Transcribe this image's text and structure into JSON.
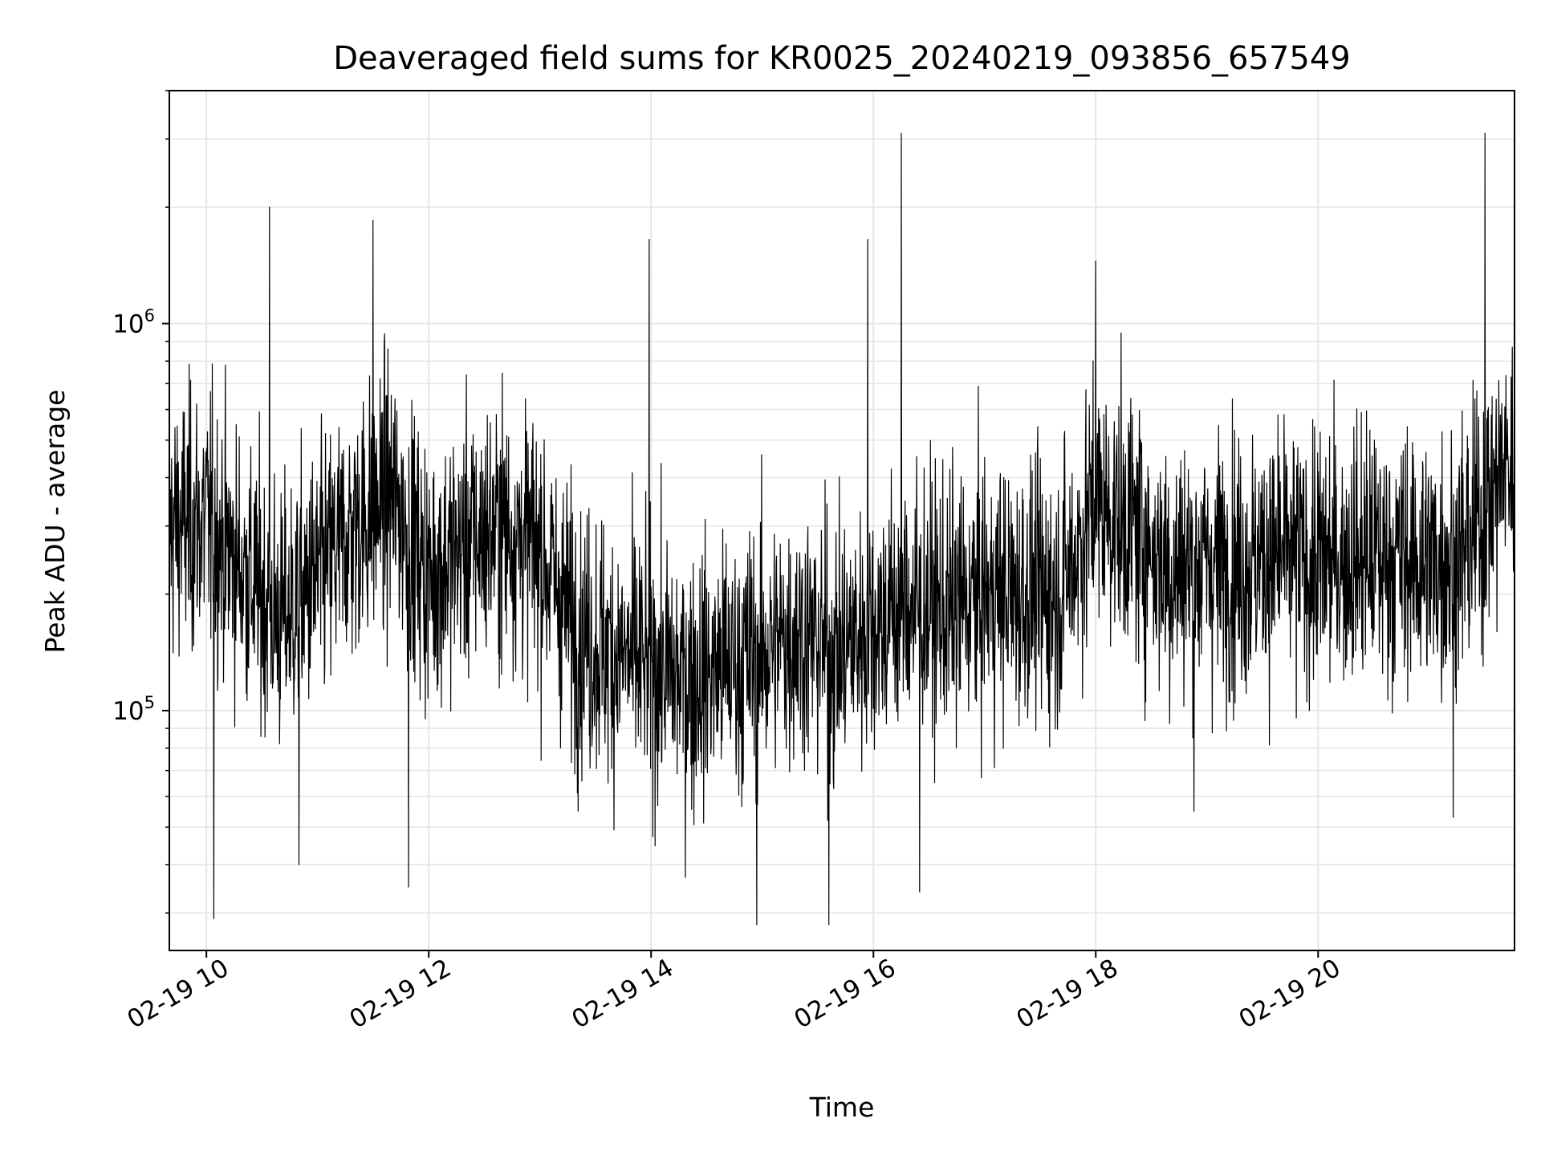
{
  "chart_data": {
    "type": "line",
    "title": "Deaveraged field sums for KR0025_20240219_093856_657549",
    "xlabel": "Time",
    "ylabel": "Peak ADU - average",
    "xscale": "date",
    "yscale": "log",
    "xlim": [
      "2024-02-19 09:40",
      "2024-02-19 21:46"
    ],
    "ylim": [
      24000,
      4000000
    ],
    "grid": true,
    "color": "#000000",
    "x_tick_labels": [
      "02-19 10",
      "02-19 12",
      "02-19 14",
      "02-19 16",
      "02-19 18",
      "02-19 20"
    ],
    "y_tick_labels": [
      {
        "base": "10",
        "exp": "5"
      },
      {
        "base": "10",
        "exp": "6"
      }
    ],
    "series": [
      {
        "values": [
          {
            "x": "2024-02-19 09:40",
            "y": 300000
          },
          {
            "x": "2024-02-19 10:00",
            "y": 310000
          },
          {
            "x": "2024-02-19 10:20",
            "y": 230000
          },
          {
            "x": "2024-02-19 10:40",
            "y": 170000
          },
          {
            "x": "2024-02-19 11:00",
            "y": 220000
          },
          {
            "x": "2024-02-19 11:20",
            "y": 300000
          },
          {
            "x": "2024-02-19 11:40",
            "y": 360000
          },
          {
            "x": "2024-02-19 12:00",
            "y": 220000
          },
          {
            "x": "2024-02-19 12:20",
            "y": 270000
          },
          {
            "x": "2024-02-19 12:40",
            "y": 300000
          },
          {
            "x": "2024-02-19 13:00",
            "y": 260000
          },
          {
            "x": "2024-02-19 13:20",
            "y": 160000
          },
          {
            "x": "2024-02-19 13:40",
            "y": 140000
          },
          {
            "x": "2024-02-19 14:00",
            "y": 130000
          },
          {
            "x": "2024-02-19 14:20",
            "y": 120000
          },
          {
            "x": "2024-02-19 14:40",
            "y": 130000
          },
          {
            "x": "2024-02-19 15:00",
            "y": 140000
          },
          {
            "x": "2024-02-19 15:20",
            "y": 160000
          },
          {
            "x": "2024-02-19 15:40",
            "y": 140000
          },
          {
            "x": "2024-02-19 16:00",
            "y": 170000
          },
          {
            "x": "2024-02-19 16:20",
            "y": 190000
          },
          {
            "x": "2024-02-19 16:40",
            "y": 180000
          },
          {
            "x": "2024-02-19 17:00",
            "y": 200000
          },
          {
            "x": "2024-02-19 17:20",
            "y": 200000
          },
          {
            "x": "2024-02-19 17:40",
            "y": 200000
          },
          {
            "x": "2024-02-19 18:00",
            "y": 340000
          },
          {
            "x": "2024-02-19 18:20",
            "y": 300000
          },
          {
            "x": "2024-02-19 18:40",
            "y": 230000
          },
          {
            "x": "2024-02-19 19:00",
            "y": 240000
          },
          {
            "x": "2024-02-19 19:20",
            "y": 240000
          },
          {
            "x": "2024-02-19 19:40",
            "y": 250000
          },
          {
            "x": "2024-02-19 20:00",
            "y": 240000
          },
          {
            "x": "2024-02-19 20:20",
            "y": 250000
          },
          {
            "x": "2024-02-19 20:40",
            "y": 250000
          },
          {
            "x": "2024-02-19 21:00",
            "y": 240000
          },
          {
            "x": "2024-02-19 21:20",
            "y": 260000
          },
          {
            "x": "2024-02-19 21:40",
            "y": 420000
          }
        ],
        "peaks": [
          {
            "x": "2024-02-19 10:04",
            "y": 29000
          },
          {
            "x": "2024-02-19 10:34",
            "y": 2000000
          },
          {
            "x": "2024-02-19 10:50",
            "y": 40000
          },
          {
            "x": "2024-02-19 11:30",
            "y": 1850000
          },
          {
            "x": "2024-02-19 11:49",
            "y": 35000
          },
          {
            "x": "2024-02-19 13:59",
            "y": 1650000
          },
          {
            "x": "2024-02-19 14:57",
            "y": 28000
          },
          {
            "x": "2024-02-19 15:36",
            "y": 28000
          },
          {
            "x": "2024-02-19 15:57",
            "y": 1650000
          },
          {
            "x": "2024-02-19 16:15",
            "y": 3100000
          },
          {
            "x": "2024-02-19 16:25",
            "y": 34000
          },
          {
            "x": "2024-02-19 18:00",
            "y": 1450000
          },
          {
            "x": "2024-02-19 18:53",
            "y": 55000
          },
          {
            "x": "2024-02-19 21:13",
            "y": 53000
          },
          {
            "x": "2024-02-19 21:30",
            "y": 3100000
          }
        ]
      }
    ]
  }
}
